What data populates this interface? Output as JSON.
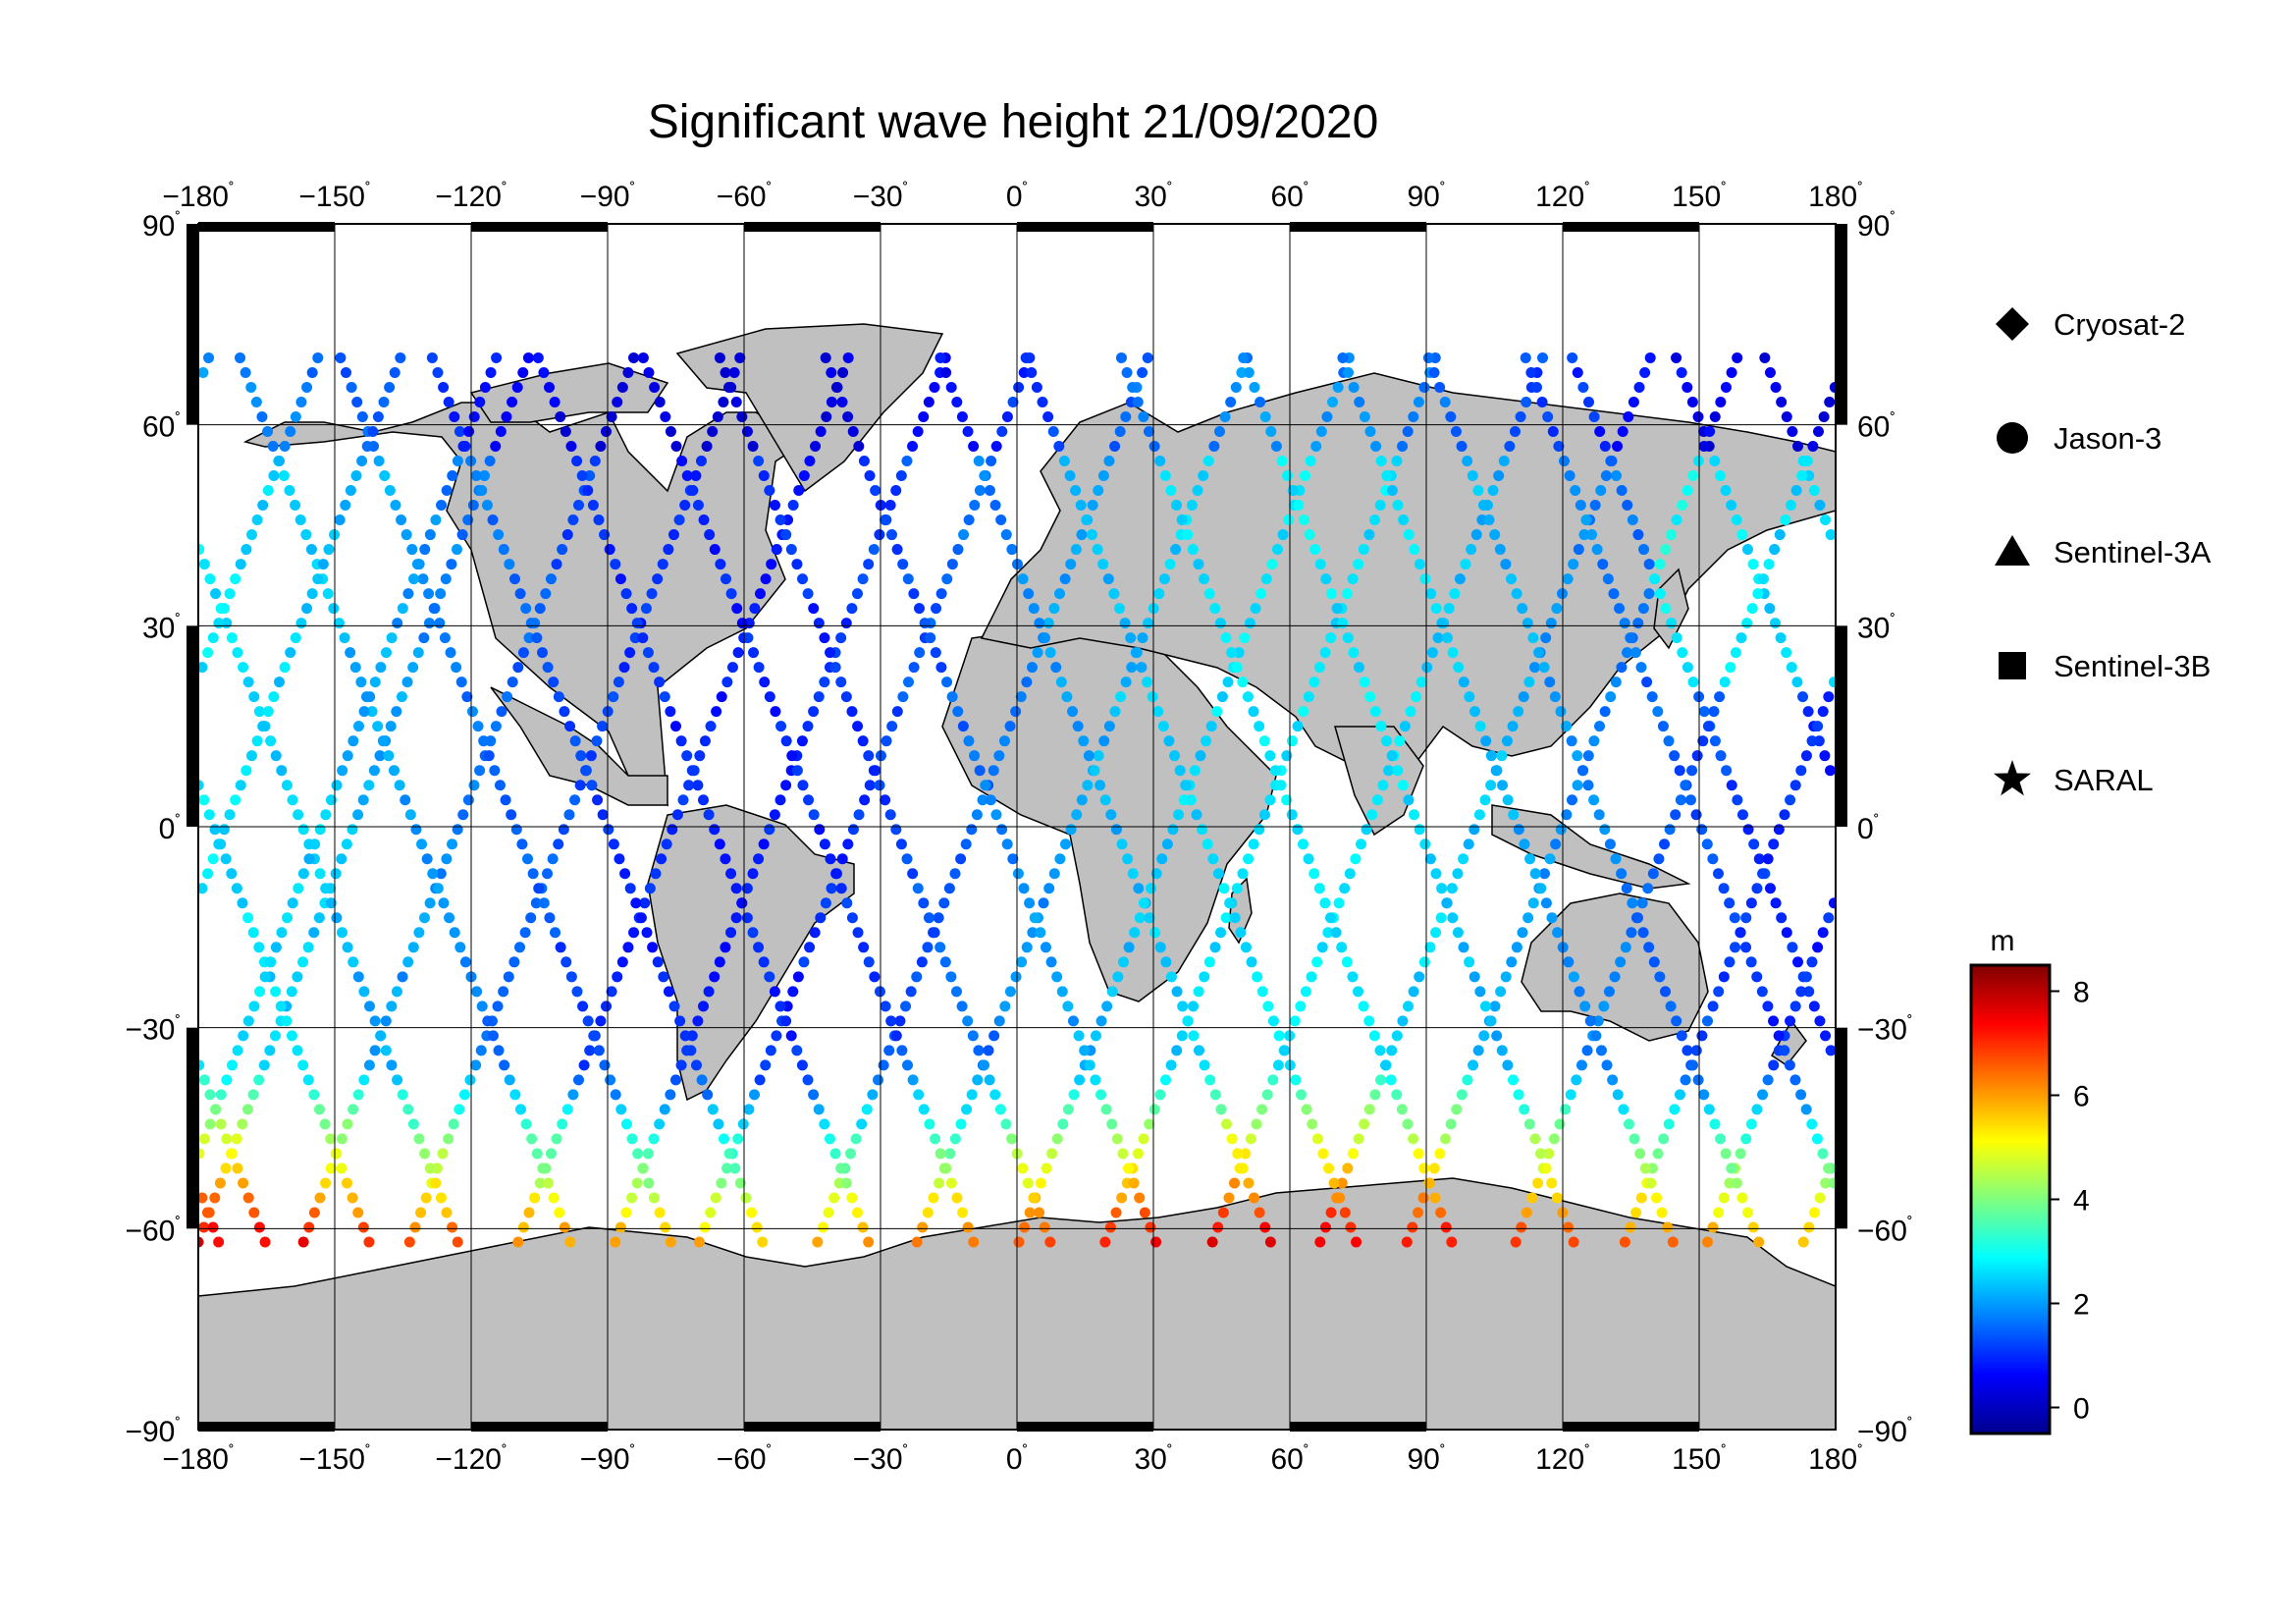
{
  "title": "Significant wave height 21/09/2020",
  "map": {
    "lon_range": [
      -180,
      180
    ],
    "lat_range": [
      -90,
      90
    ],
    "grid": true,
    "land_color": "#c0c0c0",
    "ocean_color": "#ffffff"
  },
  "axes": {
    "lon_ticks": [
      "−180",
      "−150",
      "−120",
      "−90",
      "−60",
      "−30",
      "0",
      "30",
      "60",
      "90",
      "120",
      "150",
      "180"
    ],
    "lat_ticks": [
      "90",
      "60",
      "30",
      "0",
      "−30",
      "−60",
      "−90"
    ],
    "degree_symbol": "˚"
  },
  "legend": {
    "items": [
      {
        "label": "Cryosat-2",
        "marker": "diamond"
      },
      {
        "label": "Jason-3",
        "marker": "circle"
      },
      {
        "label": "Sentinel-3A",
        "marker": "triangle"
      },
      {
        "label": "Sentinel-3B",
        "marker": "square"
      },
      {
        "label": "SARAL",
        "marker": "star"
      }
    ]
  },
  "colorbar": {
    "unit": "m",
    "min": -0.5,
    "max": 8.5,
    "tick_labels": [
      "8",
      "6",
      "4",
      "2",
      "0"
    ],
    "tick_values": [
      8,
      6,
      4,
      2,
      0
    ],
    "colormap": "jet"
  }
}
